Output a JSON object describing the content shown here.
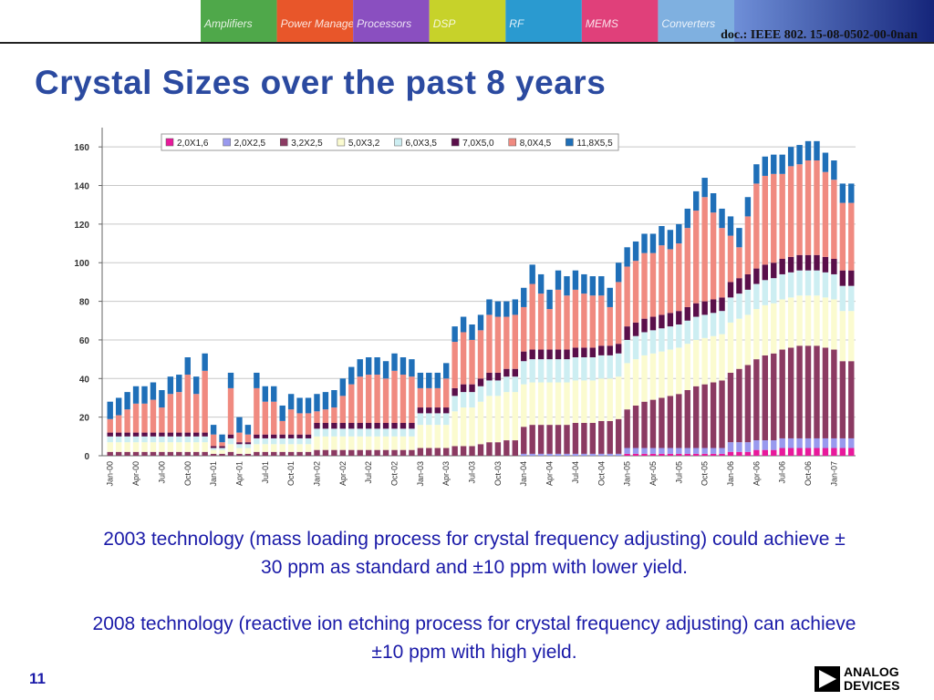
{
  "header": {
    "doc": "doc.: IEEE 802. 15-08-0502-00-0nan",
    "tiles": [
      "Amplifiers",
      "Power Management",
      "Processors",
      "DSP",
      "RF",
      "MEMS",
      "Converters"
    ]
  },
  "title": "Crystal Sizes over the past 8 years",
  "chart_data": {
    "type": "stacked-bar",
    "legend": "top-left",
    "grid": true,
    "categories": [
      "Jan-00",
      null,
      null,
      "Apr-00",
      null,
      null,
      "Jul-00",
      null,
      null,
      "Oct-00",
      null,
      null,
      "Jan-01",
      null,
      null,
      "Apr-01",
      null,
      null,
      "Jul-01",
      null,
      null,
      "Oct-01",
      null,
      null,
      "Jan-02",
      null,
      null,
      "Apr-02",
      null,
      null,
      "Jul-02",
      null,
      null,
      "Oct-02",
      null,
      null,
      "Jan-03",
      null,
      null,
      "Apr-03",
      null,
      null,
      "Jul-03",
      null,
      null,
      "Oct-03",
      null,
      null,
      "Jan-04",
      null,
      null,
      "Apr-04",
      null,
      null,
      "Jul-04",
      null,
      null,
      "Oct-04",
      null,
      null,
      "Jan-05",
      null,
      null,
      "Apr-05",
      null,
      null,
      "Jul-05",
      null,
      null,
      "Oct-05",
      null,
      null,
      "Jan-06",
      null,
      null,
      "Apr-06",
      null,
      null,
      "Jul-06",
      null,
      null,
      "Oct-06",
      null,
      null,
      "Jan-07",
      null,
      null
    ],
    "ylim": [
      0,
      170
    ],
    "yticks": [
      0,
      20,
      40,
      60,
      80,
      100,
      120,
      140,
      160
    ],
    "series": [
      {
        "name": "2,0X1,6",
        "color": "#e8199b",
        "values": [
          0,
          0,
          0,
          0,
          0,
          0,
          0,
          0,
          0,
          0,
          0,
          0,
          0,
          0,
          0,
          0,
          0,
          0,
          0,
          0,
          0,
          0,
          0,
          0,
          0,
          0,
          0,
          0,
          0,
          0,
          0,
          0,
          0,
          0,
          0,
          0,
          0,
          0,
          0,
          0,
          0,
          0,
          0,
          0,
          0,
          0,
          0,
          0,
          0,
          0,
          0,
          0,
          0,
          0,
          0,
          0,
          0,
          0,
          0,
          0,
          1,
          1,
          1,
          1,
          1,
          1,
          1,
          1,
          1,
          1,
          1,
          1,
          2,
          2,
          2,
          3,
          3,
          3,
          4,
          4,
          4,
          4,
          4,
          4,
          4,
          4,
          4
        ]
      },
      {
        "name": "2,0X2,5",
        "color": "#9999ee",
        "values": [
          0,
          0,
          0,
          0,
          0,
          0,
          0,
          0,
          0,
          0,
          0,
          0,
          0,
          0,
          0,
          0,
          0,
          0,
          0,
          0,
          0,
          0,
          0,
          0,
          0,
          0,
          0,
          0,
          0,
          0,
          0,
          0,
          0,
          0,
          0,
          0,
          0,
          0,
          0,
          0,
          0,
          0,
          0,
          0,
          0,
          0,
          0,
          0,
          1,
          1,
          1,
          1,
          1,
          1,
          1,
          1,
          1,
          1,
          1,
          1,
          3,
          3,
          3,
          3,
          3,
          3,
          3,
          3,
          3,
          3,
          3,
          3,
          5,
          5,
          5,
          5,
          5,
          5,
          5,
          5,
          5,
          5,
          5,
          5,
          5,
          5,
          5
        ]
      },
      {
        "name": "3,2X2,5",
        "color": "#8b3a62",
        "values": [
          2,
          2,
          2,
          2,
          2,
          2,
          2,
          2,
          2,
          2,
          2,
          2,
          1,
          1,
          2,
          1,
          1,
          2,
          2,
          2,
          2,
          2,
          2,
          2,
          3,
          3,
          3,
          3,
          3,
          3,
          3,
          3,
          3,
          3,
          3,
          3,
          4,
          4,
          4,
          4,
          5,
          5,
          5,
          6,
          7,
          7,
          8,
          8,
          14,
          15,
          15,
          15,
          15,
          15,
          16,
          16,
          16,
          17,
          17,
          18,
          20,
          22,
          24,
          25,
          26,
          27,
          28,
          30,
          32,
          33,
          34,
          35,
          36,
          38,
          40,
          42,
          44,
          45,
          46,
          47,
          48,
          48,
          48,
          47,
          46,
          40,
          40
        ]
      },
      {
        "name": "5,0X3,2",
        "color": "#fbfbd0",
        "values": [
          5,
          5,
          5,
          5,
          5,
          5,
          5,
          5,
          5,
          5,
          5,
          5,
          2,
          2,
          4,
          3,
          3,
          4,
          4,
          4,
          4,
          4,
          4,
          4,
          7,
          7,
          7,
          7,
          7,
          7,
          7,
          7,
          7,
          7,
          7,
          7,
          12,
          12,
          12,
          12,
          18,
          20,
          20,
          22,
          24,
          24,
          25,
          25,
          22,
          22,
          22,
          22,
          22,
          22,
          22,
          22,
          22,
          22,
          22,
          22,
          24,
          24,
          24,
          24,
          24,
          24,
          24,
          24,
          24,
          24,
          24,
          24,
          26,
          26,
          26,
          26,
          26,
          26,
          26,
          26,
          26,
          26,
          26,
          26,
          26,
          26,
          26
        ]
      },
      {
        "name": "6,0X3,5",
        "color": "#cdeef2",
        "values": [
          3,
          3,
          3,
          3,
          3,
          3,
          3,
          3,
          3,
          3,
          3,
          3,
          1,
          1,
          3,
          2,
          2,
          3,
          3,
          3,
          3,
          3,
          3,
          3,
          4,
          4,
          4,
          4,
          4,
          4,
          4,
          4,
          4,
          4,
          4,
          4,
          6,
          6,
          6,
          6,
          8,
          8,
          8,
          8,
          8,
          8,
          8,
          8,
          12,
          12,
          12,
          12,
          12,
          12,
          12,
          12,
          12,
          12,
          12,
          12,
          12,
          12,
          12,
          12,
          12,
          12,
          12,
          12,
          12,
          12,
          12,
          12,
          13,
          13,
          13,
          13,
          13,
          13,
          13,
          13,
          13,
          13,
          13,
          13,
          13,
          13,
          13
        ]
      },
      {
        "name": "7,0X5,0",
        "color": "#5a0f4a",
        "values": [
          2,
          2,
          2,
          2,
          2,
          2,
          2,
          2,
          2,
          2,
          2,
          2,
          1,
          1,
          2,
          1,
          1,
          2,
          2,
          2,
          2,
          2,
          2,
          2,
          3,
          3,
          3,
          3,
          3,
          3,
          3,
          3,
          3,
          3,
          3,
          3,
          3,
          3,
          3,
          3,
          4,
          4,
          4,
          4,
          4,
          4,
          4,
          4,
          5,
          5,
          5,
          5,
          5,
          5,
          5,
          5,
          5,
          5,
          5,
          5,
          7,
          7,
          7,
          7,
          7,
          7,
          7,
          7,
          7,
          7,
          7,
          7,
          8,
          8,
          8,
          8,
          8,
          8,
          8,
          8,
          8,
          8,
          8,
          8,
          8,
          8,
          8
        ]
      },
      {
        "name": "8,0X4,5",
        "color": "#f08a80",
        "values": [
          7,
          9,
          12,
          15,
          15,
          17,
          13,
          20,
          21,
          30,
          20,
          32,
          6,
          2,
          24,
          5,
          4,
          24,
          17,
          17,
          7,
          13,
          11,
          11,
          6,
          7,
          8,
          14,
          20,
          24,
          25,
          25,
          23,
          27,
          25,
          24,
          10,
          10,
          10,
          15,
          24,
          27,
          23,
          25,
          30,
          29,
          27,
          28,
          23,
          34,
          29,
          21,
          31,
          28,
          30,
          28,
          27,
          26,
          20,
          32,
          31,
          32,
          34,
          33,
          36,
          33,
          35,
          41,
          48,
          54,
          45,
          36,
          24,
          16,
          30,
          44,
          46,
          46,
          44,
          47,
          47,
          49,
          49,
          44,
          41,
          35,
          35
        ]
      },
      {
        "name": "11,8X5,5",
        "color": "#1f6fb8",
        "values": [
          9,
          9,
          9,
          9,
          9,
          9,
          9,
          9,
          9,
          9,
          9,
          9,
          5,
          4,
          8,
          8,
          5,
          8,
          8,
          8,
          8,
          8,
          8,
          8,
          9,
          9,
          9,
          9,
          9,
          9,
          9,
          9,
          9,
          9,
          9,
          9,
          8,
          8,
          8,
          8,
          8,
          8,
          8,
          8,
          8,
          8,
          8,
          8,
          10,
          10,
          10,
          10,
          10,
          10,
          10,
          10,
          10,
          10,
          10,
          10,
          10,
          10,
          10,
          10,
          10,
          10,
          10,
          10,
          10,
          10,
          10,
          10,
          10,
          10,
          10,
          10,
          10,
          10,
          10,
          10,
          10,
          10,
          10,
          10,
          10,
          10,
          10
        ]
      }
    ]
  },
  "notes": [
    "2003 technology (mass loading process for crystal frequency adjusting) could achieve ± 30 ppm as standard and ±10 ppm with lower yield.",
    "2008 technology (reactive ion etching process for crystal frequency adjusting) can achieve ±10 ppm with high yield."
  ],
  "footer": {
    "page": "11",
    "logo": [
      "ANALOG",
      "DEVICES"
    ]
  }
}
